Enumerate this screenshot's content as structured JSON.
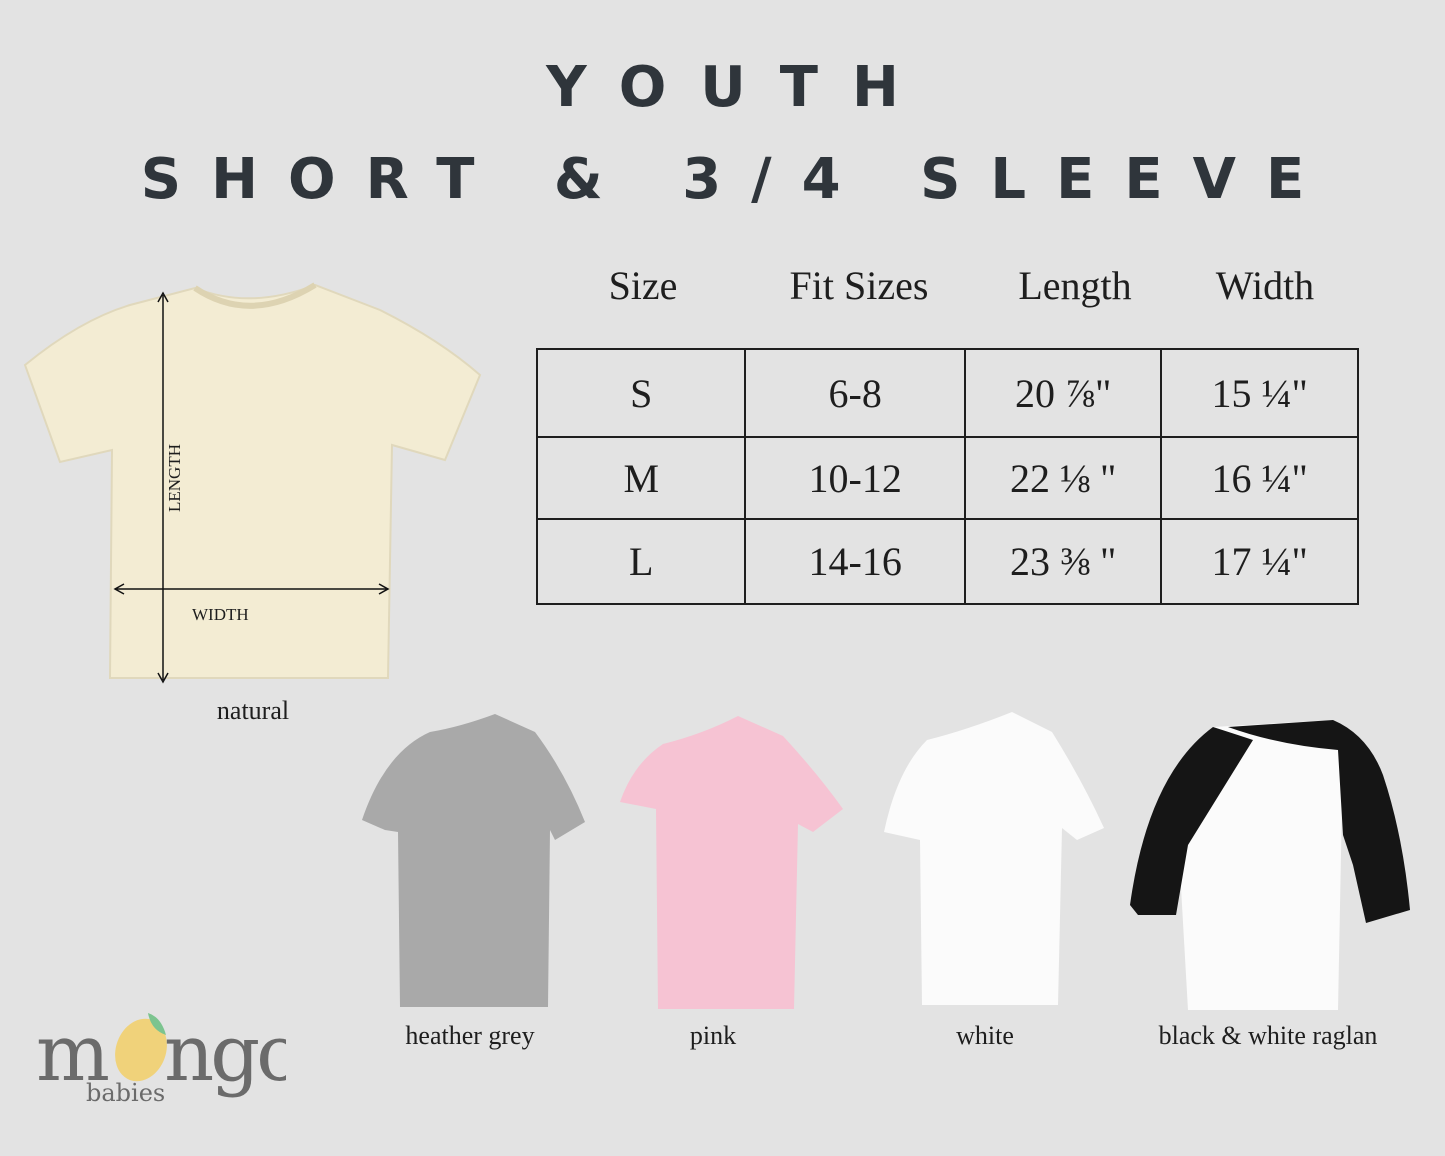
{
  "title": {
    "line1": "YOUTH",
    "line2": "SHORT & 3/4 SLEEVE"
  },
  "table": {
    "headers": [
      "Size",
      "Fit Sizes",
      "Length",
      "Width"
    ],
    "rows": [
      [
        "S",
        "6-8",
        "20 ⅞\"",
        "15 ¼\""
      ],
      [
        "M",
        "10-12",
        "22 ⅛ \"",
        "16 ¼\""
      ],
      [
        "L",
        "14-16",
        "23 ⅜ \"",
        "17 ¼\""
      ]
    ]
  },
  "diagram": {
    "length_label": "LENGTH",
    "width_label": "WIDTH"
  },
  "colors": [
    {
      "name": "natural",
      "hex": "#f3ecd3"
    },
    {
      "name": "heather grey",
      "hex": "#a9a9a9"
    },
    {
      "name": "pink",
      "hex": "#f6c3d3"
    },
    {
      "name": "white",
      "hex": "#fbfbfb"
    },
    {
      "name": "black & white raglan",
      "hex": "#151515"
    }
  ],
  "logo": {
    "brand": "mongo",
    "sub": "babies"
  }
}
